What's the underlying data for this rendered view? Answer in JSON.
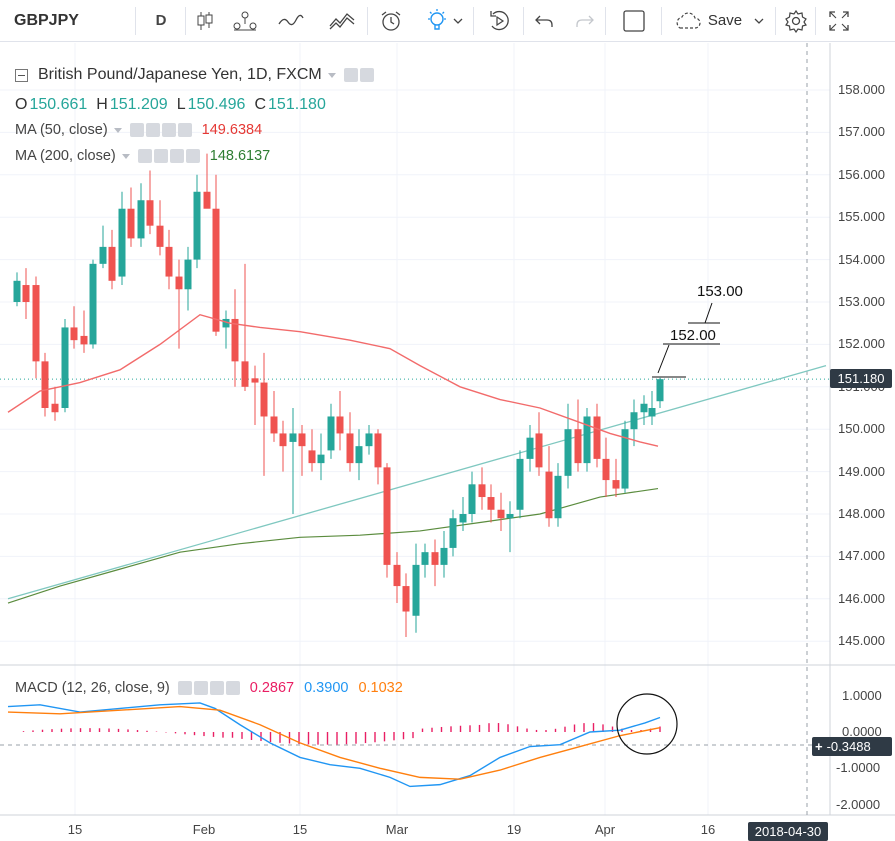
{
  "toolbar": {
    "symbol": "GBPJPY",
    "interval": "D",
    "save_label": "Save"
  },
  "legend": {
    "title": "British Pound/Japanese Yen, 1D, FXCM",
    "ohlc": {
      "o_key": "O",
      "o_val": "150.661",
      "h_key": "H",
      "h_val": "151.209",
      "l_key": "L",
      "l_val": "150.496",
      "c_key": "C",
      "c_val": "151.180"
    },
    "ma50": {
      "label": "MA (50, close)",
      "value": "149.6384",
      "color": "#e53935"
    },
    "ma200": {
      "label": "MA (200, close)",
      "value": "148.6137",
      "color": "#2e7d32"
    },
    "macd": {
      "label": "MACD (12, 26, close, 9)",
      "hist": "0.2867",
      "macd": "0.3900",
      "signal": "0.1032",
      "hist_color": "#e91e63",
      "macd_color": "#2196f3",
      "signal_color": "#ff7f0e"
    }
  },
  "price_axis": [
    "158.000",
    "157.000",
    "156.000",
    "155.000",
    "154.000",
    "153.000",
    "152.000",
    "151.000",
    "150.000",
    "149.000",
    "148.000",
    "147.000",
    "146.000",
    "145.000"
  ],
  "last_price": "151.180",
  "macd_axis": [
    "1.0000",
    "0.0000",
    "-1.0000",
    "-2.0000"
  ],
  "macd_cursor_value": "-0.3488",
  "time_axis": [
    "15",
    "Feb",
    "15",
    "Mar",
    "19",
    "Apr",
    "16"
  ],
  "cursor_date": "2018-04-30",
  "annotations": {
    "upper_target": "153.00",
    "lower_target": "152.00"
  },
  "colors": {
    "up": "#26a69a",
    "down": "#ef5350",
    "trendline": "#7fc8c0",
    "ma50": "#f26b6b",
    "ma200": "#5b8c3e"
  }
}
